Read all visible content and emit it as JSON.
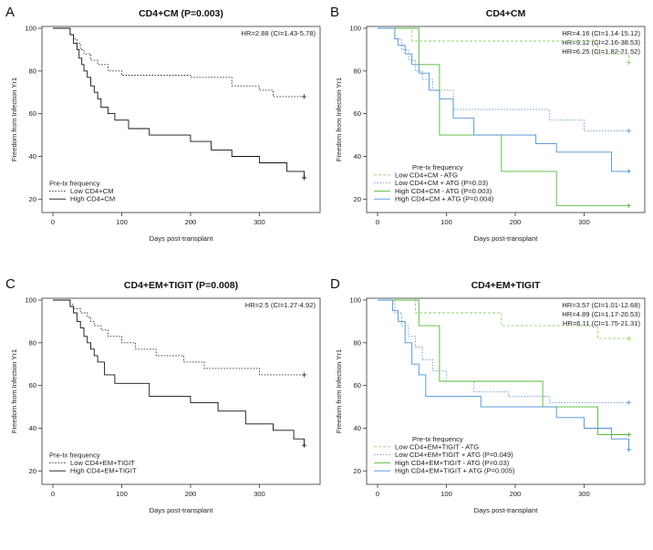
{
  "chart_data": [
    {
      "panel": "A",
      "type": "line",
      "subtype": "kaplan-meier",
      "title": "CD4+CM (P=0.003)",
      "xlabel": "Days post-transplant",
      "ylabel": "Freedom from Infection Yr1",
      "xlim": [
        0,
        375
      ],
      "ylim": [
        15,
        100
      ],
      "xticks": [
        0,
        100,
        200,
        300
      ],
      "yticks": [
        20,
        40,
        60,
        80,
        100
      ],
      "hr_lines": [
        "HR=2.88 (CI=1.43-5.78)"
      ],
      "legend_title": "Pre-tx frequency",
      "series": [
        {
          "name": "Low CD4+CM",
          "color": "#333333",
          "dash": "dotted",
          "x": [
            0,
            18,
            25,
            30,
            35,
            40,
            45,
            55,
            65,
            80,
            100,
            140,
            200,
            260,
            300,
            320,
            365
          ],
          "y": [
            100,
            100,
            97,
            95,
            93,
            90,
            88,
            85,
            83,
            80,
            78,
            78,
            77,
            73,
            71,
            68,
            68
          ]
        },
        {
          "name": "High CD4+CM",
          "color": "#111111",
          "dash": "solid",
          "x": [
            0,
            18,
            25,
            30,
            35,
            38,
            42,
            45,
            50,
            55,
            60,
            65,
            70,
            80,
            90,
            100,
            110,
            140,
            180,
            200,
            230,
            260,
            300,
            340,
            365
          ],
          "y": [
            100,
            100,
            97,
            93,
            90,
            86,
            83,
            80,
            77,
            73,
            70,
            67,
            63,
            60,
            57,
            57,
            53,
            50,
            50,
            47,
            43,
            40,
            37,
            33,
            30
          ]
        }
      ]
    },
    {
      "panel": "B",
      "type": "line",
      "subtype": "kaplan-meier",
      "title": "CD4+CM",
      "xlabel": "Days post-transplant",
      "ylabel": "Freedom from Infection Yr1",
      "xlim": [
        0,
        375
      ],
      "ylim": [
        15,
        100
      ],
      "xticks": [
        0,
        100,
        200,
        300
      ],
      "yticks": [
        20,
        40,
        60,
        80,
        100
      ],
      "hr_lines": [
        "HR=4.16 (CI=1.14-15.12)",
        "HR=9.12 (CI=2.16-38.53)",
        "HR=6.25 (CI=1.82-21.52)"
      ],
      "legend_title": "Pre-tx frequency",
      "series": [
        {
          "name": "Low CD4+CM - ATG",
          "color": "#8fd16a",
          "dash": "dashed",
          "x": [
            0,
            40,
            50,
            280,
            320,
            365
          ],
          "y": [
            100,
            100,
            94,
            94,
            88,
            84
          ]
        },
        {
          "name": "Low CD4+CM + ATG (P=0.03)",
          "color": "#6f9fd8",
          "dash": "dotted",
          "x": [
            0,
            18,
            25,
            35,
            45,
            55,
            65,
            80,
            110,
            250,
            300,
            365
          ],
          "y": [
            100,
            100,
            95,
            90,
            85,
            80,
            76,
            71,
            62,
            57,
            52,
            52
          ]
        },
        {
          "name": "High CD4+CM - ATG (P=0.003)",
          "color": "#55b837",
          "dash": "solid",
          "x": [
            0,
            20,
            60,
            90,
            180,
            260,
            365
          ],
          "y": [
            100,
            100,
            83,
            50,
            33,
            17,
            17
          ]
        },
        {
          "name": "High CD4+CM + ATG (P=0.004)",
          "color": "#4a8fd6",
          "dash": "solid",
          "x": [
            0,
            18,
            25,
            30,
            40,
            50,
            60,
            75,
            90,
            110,
            140,
            230,
            260,
            340,
            365
          ],
          "y": [
            100,
            100,
            95,
            92,
            88,
            83,
            79,
            71,
            67,
            58,
            50,
            46,
            42,
            33,
            33
          ]
        }
      ]
    },
    {
      "panel": "C",
      "type": "line",
      "subtype": "kaplan-meier",
      "title": "CD4+EM+TIGIT (P=0.008)",
      "xlabel": "Days post-transplant",
      "ylabel": "Freedom from Infection Yr1",
      "xlim": [
        0,
        375
      ],
      "ylim": [
        15,
        100
      ],
      "xticks": [
        0,
        100,
        200,
        300
      ],
      "yticks": [
        20,
        40,
        60,
        80,
        100
      ],
      "hr_lines": [
        "HR=2.5 (CI=1.27-4.92)"
      ],
      "legend_title": "Pre-tx frequency",
      "series": [
        {
          "name": "Low CD4+EM+TIGIT",
          "color": "#333333",
          "dash": "dotted",
          "x": [
            0,
            20,
            25,
            30,
            40,
            50,
            55,
            60,
            70,
            80,
            100,
            120,
            150,
            190,
            220,
            260,
            300,
            365
          ],
          "y": [
            100,
            100,
            98,
            96,
            94,
            92,
            90,
            88,
            86,
            83,
            80,
            77,
            74,
            71,
            68,
            68,
            65,
            65
          ]
        },
        {
          "name": "High CD4+EM+TIGIT",
          "color": "#111111",
          "dash": "solid",
          "x": [
            0,
            20,
            25,
            30,
            35,
            40,
            45,
            50,
            55,
            60,
            65,
            75,
            90,
            140,
            200,
            240,
            280,
            320,
            350,
            365
          ],
          "y": [
            100,
            100,
            97,
            94,
            90,
            87,
            83,
            80,
            77,
            74,
            71,
            65,
            61,
            55,
            52,
            48,
            42,
            39,
            35,
            32
          ]
        }
      ]
    },
    {
      "panel": "D",
      "type": "line",
      "subtype": "kaplan-meier",
      "title": "CD4+EM+TIGIT",
      "xlabel": "Days post-transplant",
      "ylabel": "Freedom from Infection Yr1",
      "xlim": [
        0,
        375
      ],
      "ylim": [
        15,
        100
      ],
      "xticks": [
        0,
        100,
        200,
        300
      ],
      "yticks": [
        20,
        40,
        60,
        80,
        100
      ],
      "hr_lines": [
        "HR=3.57 (CI=1.01-12.68)",
        "HR=4.89 (CI=1.17-20.53)",
        "HR=6.11 (CI=1.75-21.31)"
      ],
      "legend_title": "Pre-tx frequency",
      "series": [
        {
          "name": "Low CD4+EM+TIGIT - ATG",
          "color": "#8fd16a",
          "dash": "dashed",
          "x": [
            0,
            45,
            55,
            180,
            320,
            365
          ],
          "y": [
            100,
            100,
            94,
            88,
            82,
            82
          ]
        },
        {
          "name": "Low CD4+EM+TIGIT + ATG (P=0.049)",
          "color": "#6f9fd8",
          "dash": "dotted",
          "x": [
            0,
            18,
            25,
            35,
            45,
            55,
            65,
            80,
            100,
            140,
            190,
            250,
            365
          ],
          "y": [
            100,
            100,
            94,
            88,
            83,
            78,
            72,
            67,
            62,
            57,
            55,
            52,
            52
          ]
        },
        {
          "name": "High CD4+EM+TIGIT - ATG (P=0.03)",
          "color": "#55b837",
          "dash": "solid",
          "x": [
            0,
            25,
            60,
            90,
            240,
            320,
            365
          ],
          "y": [
            100,
            100,
            88,
            62,
            50,
            37,
            37
          ]
        },
        {
          "name": "High CD4+EM+TIGIT + ATG (P=0.005)",
          "color": "#4a8fd6",
          "dash": "solid",
          "x": [
            0,
            15,
            22,
            30,
            40,
            50,
            60,
            70,
            100,
            150,
            260,
            300,
            340,
            365
          ],
          "y": [
            100,
            100,
            95,
            90,
            80,
            70,
            65,
            55,
            55,
            50,
            45,
            40,
            35,
            30
          ]
        }
      ]
    }
  ]
}
